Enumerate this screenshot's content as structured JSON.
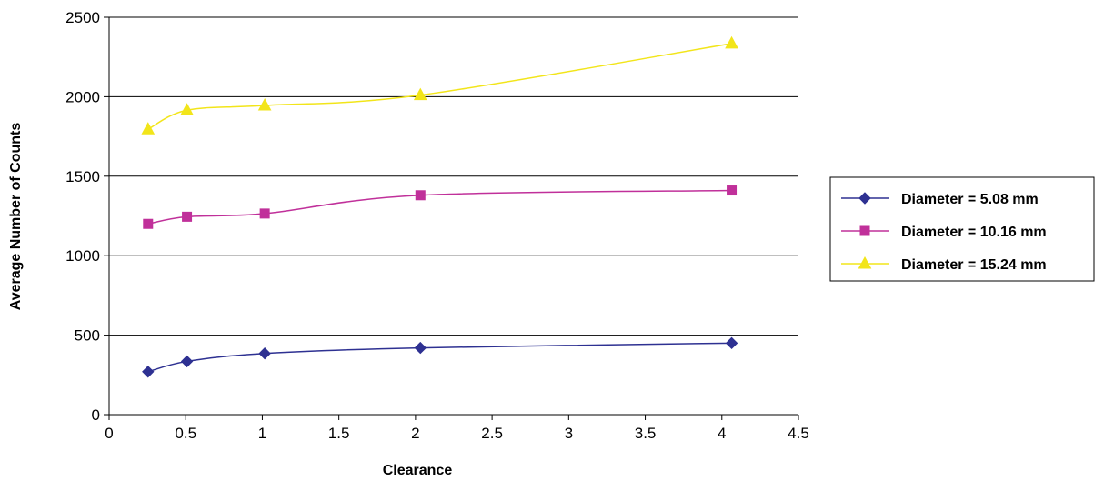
{
  "chart_data": {
    "type": "line",
    "title": "",
    "xlabel": "Clearance",
    "ylabel": "Average Number of Counts",
    "xlim": [
      0,
      4.5
    ],
    "ylim": [
      0,
      2500
    ],
    "xticks": [
      "0",
      "0.5",
      "1",
      "1.5",
      "2",
      "2.5",
      "3",
      "3.5",
      "4",
      "4.5"
    ],
    "yticks": [
      "0",
      "500",
      "1000",
      "1500",
      "2000",
      "2500"
    ],
    "grid": "horizontal",
    "legend_position": "right",
    "series": [
      {
        "name": "Diameter = 5.08 mm",
        "color": "#2e3192",
        "marker": "diamond",
        "x": [
          0.254,
          0.508,
          1.016,
          2.032,
          4.064
        ],
        "y": [
          270,
          335,
          385,
          420,
          450
        ]
      },
      {
        "name": "Diameter = 10.16 mm",
        "color": "#c0309a",
        "marker": "square",
        "x": [
          0.254,
          0.508,
          1.016,
          2.032,
          4.064
        ],
        "y": [
          1200,
          1245,
          1265,
          1380,
          1410
        ]
      },
      {
        "name": "Diameter = 15.24 mm",
        "color": "#f2e51a",
        "marker": "triangle",
        "x": [
          0.254,
          0.508,
          1.016,
          2.032,
          4.064
        ],
        "y": [
          1795,
          1915,
          1945,
          2010,
          2335
        ]
      }
    ]
  }
}
